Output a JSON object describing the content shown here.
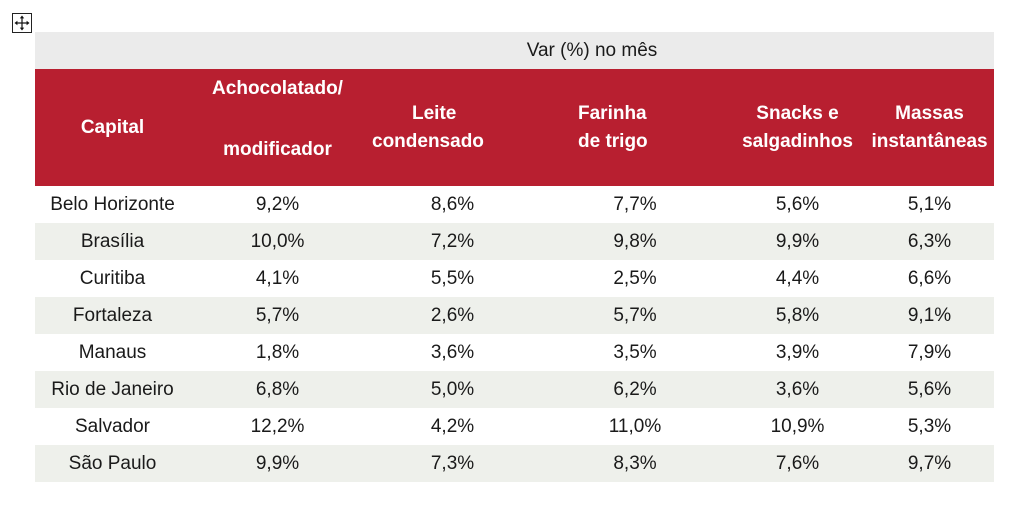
{
  "super_header": "Var (%) no mês",
  "headers": [
    {
      "line1": "Capital",
      "line2": ""
    },
    {
      "line1": "Achocolatado/",
      "line2": "modificador"
    },
    {
      "line1": "Leite",
      "line2": "condensado"
    },
    {
      "line1": "Farinha",
      "line2": "de trigo"
    },
    {
      "line1": "Snacks e",
      "line2": "salgadinhos"
    },
    {
      "line1": "Massas",
      "line2": "instantâneas"
    }
  ],
  "rows": [
    [
      "Belo Horizonte",
      "9,2%",
      "8,6%",
      "7,7%",
      "5,6%",
      "5,1%"
    ],
    [
      "Brasília",
      "10,0%",
      "7,2%",
      "9,8%",
      "9,9%",
      "6,3%"
    ],
    [
      "Curitiba",
      "4,1%",
      "5,5%",
      "2,5%",
      "4,4%",
      "6,6%"
    ],
    [
      "Fortaleza",
      "5,7%",
      "2,6%",
      "5,7%",
      "5,8%",
      "9,1%"
    ],
    [
      "Manaus",
      "1,8%",
      "3,6%",
      "3,5%",
      "3,9%",
      "7,9%"
    ],
    [
      "Rio de Janeiro",
      "6,8%",
      "5,0%",
      "6,2%",
      "3,6%",
      "5,6%"
    ],
    [
      "Salvador",
      "12,2%",
      "4,2%",
      "11,0%",
      "10,9%",
      "5,3%"
    ],
    [
      "São Paulo",
      "9,9%",
      "7,3%",
      "8,3%",
      "7,6%",
      "9,7%"
    ]
  ],
  "colors": {
    "header_bg": "#b81f30",
    "header_text": "#ffffff",
    "super_header_bg": "#ebebeb",
    "alt_row_bg": "#eef0eb"
  },
  "icons": {
    "handle": "move-arrows-icon"
  }
}
